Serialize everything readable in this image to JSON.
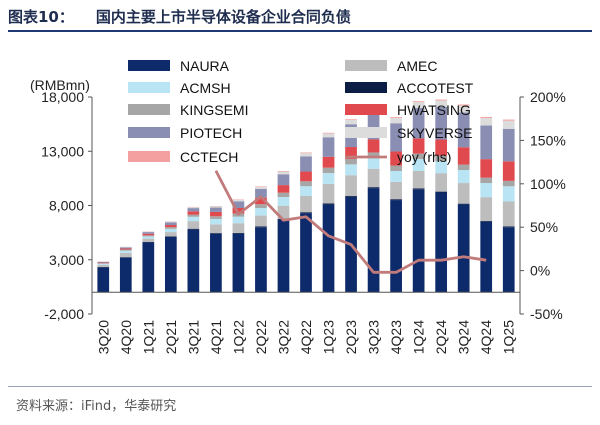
{
  "header": {
    "figure_no": "图表10：",
    "title": "国内主要上市半导体设备企业合同负债"
  },
  "footer": {
    "source": "资料来源：iFind，华泰研究"
  },
  "chart_data": {
    "type": "bar",
    "stacked": true,
    "ylabel": "(RMBmn)",
    "ylim": [
      -2000,
      18000
    ],
    "yticks": [
      -2000,
      3000,
      8000,
      13000,
      18000
    ],
    "ytick_labels": [
      "-2,000",
      "3,000",
      "8,000",
      "13,000",
      "18,000"
    ],
    "y2lim": [
      -0.5,
      2.0
    ],
    "y2ticks": [
      -0.5,
      0,
      0.5,
      1.0,
      1.5,
      2.0
    ],
    "y2tick_labels": [
      "-50%",
      "0%",
      "50%",
      "100%",
      "150%",
      "200%"
    ],
    "categories": [
      "3Q20",
      "4Q20",
      "1Q21",
      "2Q21",
      "3Q21",
      "4Q21",
      "1Q22",
      "2Q22",
      "3Q22",
      "4Q22",
      "1Q23",
      "2Q23",
      "3Q23",
      "4Q23",
      "1Q24",
      "2Q24",
      "3Q24",
      "4Q24",
      "1Q25"
    ],
    "xtick_labels": [
      "3Q20",
      "4Q20",
      "1Q21",
      "2Q21",
      "3Q21",
      "4Q21",
      "1Q22",
      "2Q22",
      "3Q22",
      "4Q22",
      "1Q23",
      "2Q23",
      "3Q23",
      "4Q23",
      "1Q24",
      "2Q24",
      "3Q24",
      "4Q24",
      "1Q25"
    ],
    "series": [
      {
        "name": "NAURA",
        "color": "#0d2a6b",
        "values": [
          2300,
          3200,
          4600,
          5100,
          5800,
          5400,
          5400,
          6000,
          6700,
          7300,
          8100,
          8800,
          9600,
          8500,
          9500,
          9200,
          8100,
          6500,
          6000
        ]
      },
      {
        "name": "ACCOTEST",
        "color": "#0b1d45",
        "values": [
          30,
          40,
          50,
          50,
          60,
          60,
          70,
          70,
          80,
          80,
          90,
          90,
          90,
          80,
          80,
          80,
          70,
          70,
          70
        ]
      },
      {
        "name": "AMEC",
        "color": "#bdbdbd",
        "values": [
          200,
          400,
          300,
          400,
          700,
          800,
          900,
          1000,
          1200,
          1500,
          1800,
          1900,
          1700,
          1600,
          1600,
          1700,
          1900,
          2200,
          2300
        ]
      },
      {
        "name": "ACMSH",
        "color": "#b9e4f3",
        "values": [
          100,
          200,
          200,
          300,
          400,
          500,
          600,
          700,
          800,
          900,
          1000,
          1000,
          1000,
          1000,
          1100,
          1100,
          1200,
          1300,
          1400
        ]
      },
      {
        "name": "KINGSEMI",
        "color": "#a6a6a6",
        "values": [
          50,
          100,
          100,
          150,
          200,
          250,
          300,
          350,
          400,
          450,
          500,
          500,
          500,
          500,
          500,
          500,
          500,
          500,
          500
        ]
      },
      {
        "name": "HWATSING",
        "color": "#e0494d",
        "values": [
          60,
          100,
          150,
          200,
          300,
          400,
          500,
          600,
          700,
          900,
          1000,
          1100,
          1200,
          1300,
          1400,
          1500,
          1600,
          1700,
          1800
        ]
      },
      {
        "name": "PIOTECH",
        "color": "#8a8eb3",
        "values": [
          70,
          100,
          150,
          250,
          300,
          400,
          600,
          800,
          1000,
          1400,
          1800,
          2100,
          2300,
          2600,
          2800,
          3000,
          3200,
          3100,
          3000
        ]
      },
      {
        "name": "SKYVERSE",
        "color": "#dcdcdc",
        "values": [
          20,
          30,
          40,
          60,
          80,
          100,
          150,
          200,
          250,
          300,
          350,
          400,
          450,
          500,
          550,
          600,
          650,
          700,
          750
        ]
      },
      {
        "name": "CCTECH",
        "color": "#f4a0a0",
        "values": [
          10,
          15,
          20,
          25,
          30,
          35,
          40,
          45,
          50,
          55,
          60,
          65,
          70,
          75,
          80,
          85,
          90,
          95,
          100
        ]
      }
    ],
    "line": {
      "name": "yoy (rhs)",
      "color": "#c27b7b",
      "x_start_index": 5,
      "values": [
        1.15,
        0.65,
        0.85,
        0.58,
        0.62,
        0.4,
        0.3,
        -0.02,
        -0.02,
        0.12,
        0.12,
        0.16,
        0.12
      ]
    },
    "legend": [
      {
        "label": "NAURA",
        "key": "NAURA",
        "kind": "box"
      },
      {
        "label": "AMEC",
        "key": "AMEC",
        "kind": "box"
      },
      {
        "label": "ACMSH",
        "key": "ACMSH",
        "kind": "box"
      },
      {
        "label": "ACCOTEST",
        "key": "ACCOTEST",
        "kind": "box"
      },
      {
        "label": "KINGSEMI",
        "key": "KINGSEMI",
        "kind": "box"
      },
      {
        "label": "HWATSING",
        "key": "HWATSING",
        "kind": "box"
      },
      {
        "label": "PIOTECH",
        "key": "PIOTECH",
        "kind": "box"
      },
      {
        "label": "SKYVERSE",
        "key": "SKYVERSE",
        "kind": "box"
      },
      {
        "label": "CCTECH",
        "key": "CCTECH",
        "kind": "box"
      },
      {
        "label": "yoy (rhs)",
        "key": "yoy",
        "kind": "line"
      }
    ]
  }
}
